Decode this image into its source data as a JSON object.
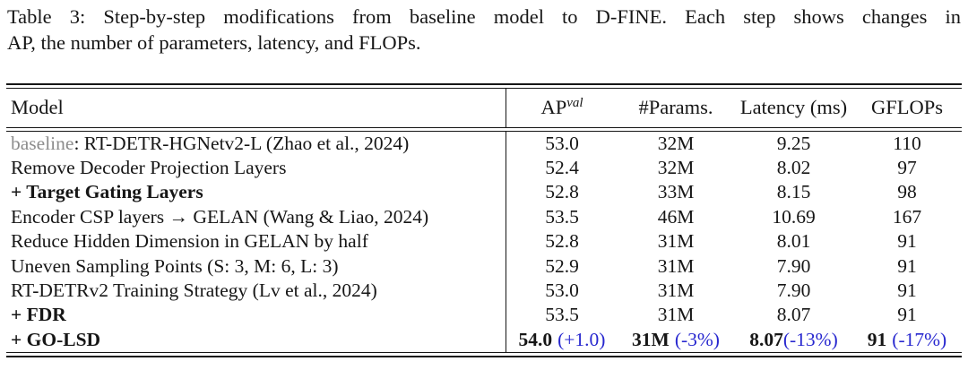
{
  "caption": {
    "line1": "Table 3: Step-by-step modifications from baseline model to D-FINE. Each step shows changes in",
    "line2": "AP, the number of parameters, latency, and FLOPs."
  },
  "colors": {
    "accent_blue": "#2727cf",
    "baseline_gray": "#8c8c8c",
    "text": "#161616"
  },
  "table": {
    "headers": {
      "model": "Model",
      "ap_base": "AP",
      "ap_sup": "val",
      "params": "#Params.",
      "latency": "Latency (ms)",
      "gflops": "GFLOPs"
    },
    "rows": [
      {
        "model_prefix": "baseline",
        "model": ": RT-DETR-HGNetv2-L (Zhao et al., 2024)",
        "ap": "53.0",
        "params": "32M",
        "latency": "9.25",
        "gflops": "110"
      },
      {
        "model": "Remove Decoder Projection Layers",
        "ap": "52.4",
        "params": "32M",
        "latency": "8.02",
        "gflops": "97"
      },
      {
        "model": "+ Target Gating Layers",
        "ap": "52.8",
        "params": "33M",
        "latency": "8.15",
        "gflops": "98"
      },
      {
        "model": "Encoder CSP layers → GELAN (Wang & Liao, 2024)",
        "ap": "53.5",
        "params": "46M",
        "latency": "10.69",
        "gflops": "167"
      },
      {
        "model": "Reduce Hidden Dimension in GELAN by half",
        "ap": "52.8",
        "params": "31M",
        "latency": "8.01",
        "gflops": "91"
      },
      {
        "model": "Uneven Sampling Points (S: 3, M: 6, L: 3)",
        "ap": "52.9",
        "params": "31M",
        "latency": "7.90",
        "gflops": "91"
      },
      {
        "model": "RT-DETRv2 Training Strategy (Lv et al., 2024)",
        "ap": "53.0",
        "params": "31M",
        "latency": "7.90",
        "gflops": "91"
      },
      {
        "model": "+ FDR",
        "ap": "53.5",
        "params": "31M",
        "latency": "8.07",
        "gflops": "91"
      },
      {
        "model": "+ GO-LSD",
        "ap": "54.0",
        "ap_delta": "(+1.0)",
        "params": "31M",
        "params_delta": "(-3%)",
        "latency": "8.07",
        "latency_delta": "(-13%)",
        "gflops": "91",
        "gflops_delta": "(-17%)"
      }
    ]
  }
}
